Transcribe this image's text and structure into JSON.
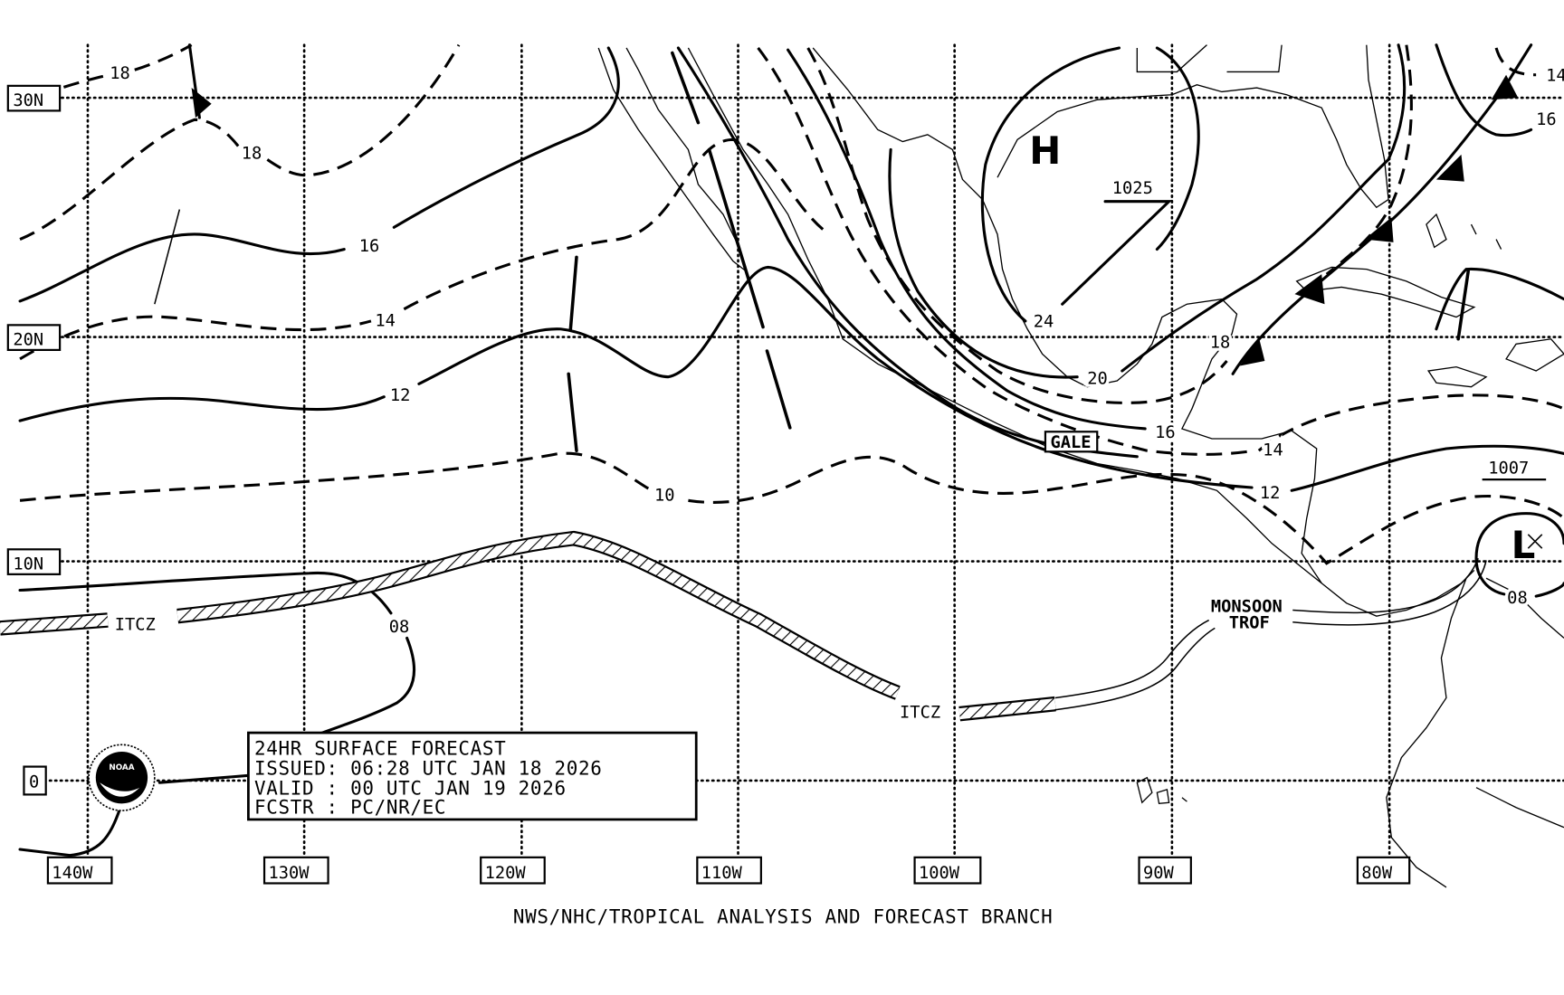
{
  "map": {
    "latitude_labels": [
      "30N",
      "20N",
      "10N",
      "0"
    ],
    "longitude_labels": [
      "140W",
      "130W",
      "120W",
      "110W",
      "100W",
      "90W",
      "80W"
    ],
    "isobar_labels": [
      "18",
      "18",
      "16",
      "14",
      "12",
      "10",
      "08",
      "24",
      "20",
      "18",
      "16",
      "14",
      "12",
      "08",
      "16",
      "14"
    ],
    "high_center": {
      "symbol": "H",
      "pressure": "1025"
    },
    "low_center": {
      "symbol": "L",
      "pressure": "1007"
    },
    "gale_label": "GALE",
    "itcz_labels": [
      "ITCZ",
      "ITCZ"
    ],
    "monsoon_trough_label": [
      "MONSOON",
      "TROF"
    ]
  },
  "info_box": {
    "title": "24HR SURFACE FORECAST",
    "issued": "ISSUED: 06:28 UTC JAN 18 2026",
    "valid": "VALID : 00 UTC JAN 19 2026",
    "forecasters": "FCSTR : PC/NR/EC"
  },
  "logo": {
    "text": "NOAA"
  },
  "credit": "NWS/NHC/TROPICAL ANALYSIS AND FORECAST BRANCH",
  "colors": {
    "ink": "#000000",
    "background": "#ffffff"
  }
}
